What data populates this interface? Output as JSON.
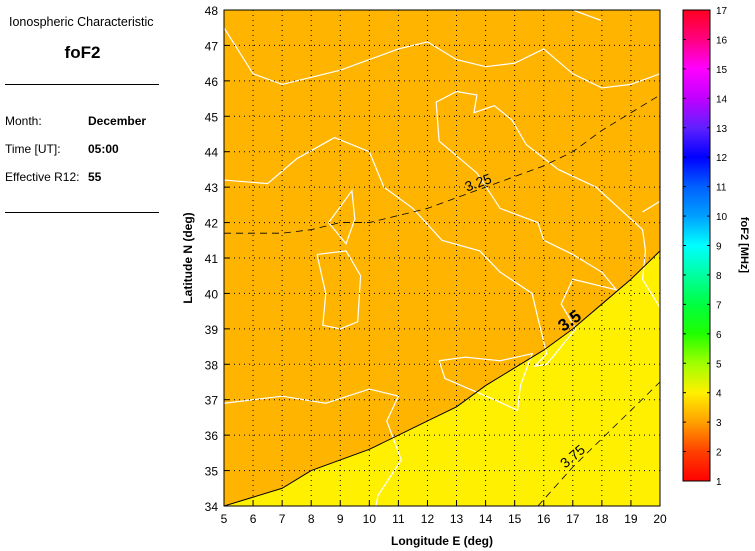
{
  "panel": {
    "heading": "Ionospheric Characteristic",
    "characteristic": "foF2",
    "month_label": "Month:",
    "month_value": "December",
    "time_label": "Time [UT]:",
    "time_value": "05:00",
    "r12_label": "Effective R12:",
    "r12_value": "55"
  },
  "chart_data": {
    "type": "contour-map",
    "xlabel": "Longitude E (deg)",
    "ylabel": "Latitude N (deg)",
    "xlim": [
      5,
      20
    ],
    "ylim": [
      34,
      48
    ],
    "xticks": [
      "5",
      "6",
      "7",
      "8",
      "9",
      "10",
      "11",
      "12",
      "13",
      "14",
      "15",
      "16",
      "17",
      "18",
      "19",
      "20"
    ],
    "yticks": [
      "34",
      "35",
      "36",
      "37",
      "38",
      "39",
      "40",
      "41",
      "42",
      "43",
      "44",
      "45",
      "46",
      "47",
      "48"
    ],
    "grid": true,
    "fill_colors": {
      "3-3.5": "#FFB400",
      "3.5-4": "#FFF000",
      "coastline": "#FFFFFF"
    },
    "contours": [
      {
        "level": "3.25",
        "style": "dashed",
        "points": [
          [
            5,
            41.7
          ],
          [
            7,
            41.7
          ],
          [
            8,
            41.8
          ],
          [
            9,
            42
          ],
          [
            10,
            42
          ],
          [
            11,
            42.2
          ],
          [
            12,
            42.4
          ],
          [
            13,
            42.7
          ],
          [
            14,
            43
          ],
          [
            15,
            43.3
          ],
          [
            16,
            43.6
          ],
          [
            17,
            44
          ],
          [
            18,
            44.6
          ],
          [
            19,
            45.1
          ],
          [
            20,
            45.6
          ]
        ],
        "label_at": [
          13.8,
          43
        ]
      },
      {
        "level": "3.5",
        "style": "solid",
        "points": [
          [
            5,
            34
          ],
          [
            7,
            34.5
          ],
          [
            8,
            35
          ],
          [
            9,
            35.3
          ],
          [
            10,
            35.6
          ],
          [
            11,
            36
          ],
          [
            12,
            36.4
          ],
          [
            13,
            36.8
          ],
          [
            14,
            37.4
          ],
          [
            15,
            37.9
          ],
          [
            16,
            38.4
          ],
          [
            17,
            39
          ],
          [
            18,
            39.7
          ],
          [
            19,
            40.4
          ],
          [
            20,
            41.2
          ]
        ],
        "label_at": [
          17,
          39.1
        ]
      },
      {
        "level": "3.75",
        "style": "dashed",
        "points": [
          [
            15.8,
            34
          ],
          [
            17,
            35.1
          ],
          [
            18,
            35.9
          ],
          [
            19,
            36.7
          ],
          [
            20,
            37.5
          ]
        ],
        "label_at": [
          17.1,
          35.3
        ]
      }
    ],
    "colorbar": {
      "label": "foF2 [MHz]",
      "range": [
        1,
        17
      ],
      "ticks": [
        "1",
        "2",
        "3",
        "4",
        "5",
        "6",
        "7",
        "8",
        "9",
        "10",
        "11",
        "12",
        "13",
        "14",
        "15",
        "16",
        "17"
      ]
    }
  }
}
